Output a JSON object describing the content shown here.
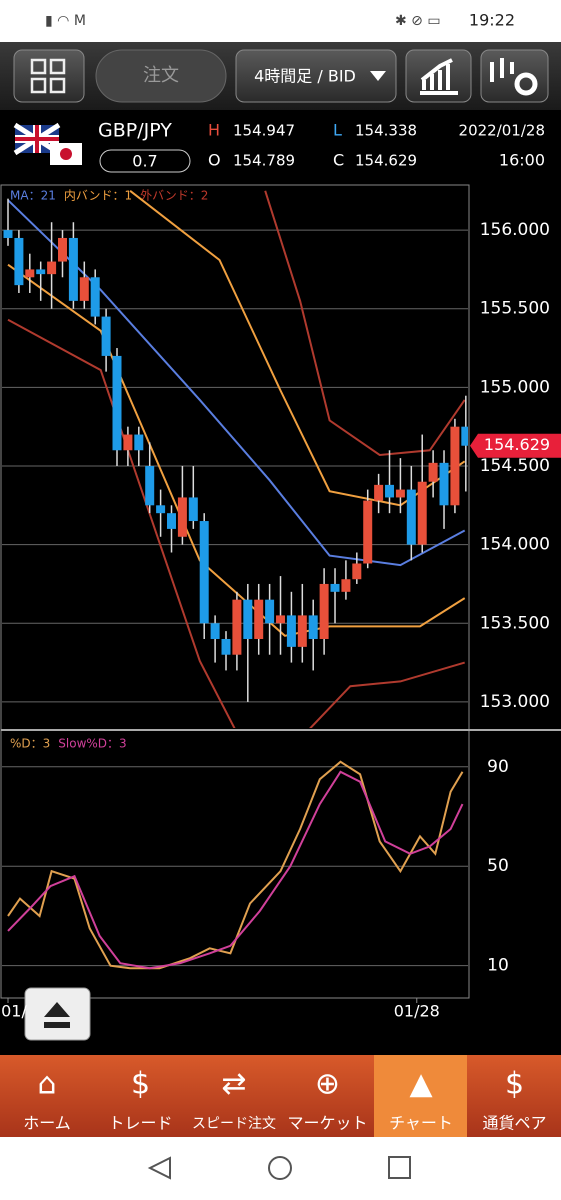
{
  "status_bar": {
    "time": "19:22"
  },
  "toolbar": {
    "order_button": "注文",
    "timeframe": "4時間足 / BID"
  },
  "quote": {
    "pair": "GBP/JPY",
    "spread": "0.7",
    "high_label": "H",
    "high": "154.947",
    "low_label": "L",
    "low": "154.338",
    "open_label": "O",
    "open": "154.789",
    "close_label": "C",
    "close": "154.629",
    "date": "2022/01/28",
    "time": "16:00"
  },
  "chart_data": [
    {
      "type": "candlestick",
      "legend": [
        "MA：21",
        "内バンド：1",
        "外バンド：2"
      ],
      "legend_colors": [
        "#5a7ee0",
        "#f0a040",
        "#c0392b"
      ],
      "up_color": "#e8503a",
      "down_color": "#1e9be8",
      "xlim": [
        -0.55,
        42.2
      ],
      "ylim": [
        152.834,
        156.255
      ],
      "yticks": [
        {
          "value": 156,
          "label": "156.000"
        },
        {
          "value": 155.5,
          "label": "155.500"
        },
        {
          "value": 155,
          "label": "155.000"
        },
        {
          "value": 154.5,
          "label": "154.500"
        },
        {
          "value": 154,
          "label": "154.000"
        },
        {
          "value": 153.5,
          "label": "153.500"
        },
        {
          "value": 153,
          "label": "153.000"
        }
      ],
      "grid": true,
      "current_price": {
        "value": 154.629,
        "label": "154.629"
      },
      "candles": {
        "open": [
          156.0,
          155.95,
          155.7,
          155.75,
          155.72,
          155.8,
          155.95,
          155.55,
          155.7,
          155.45,
          155.2,
          154.6,
          154.7,
          154.5,
          154.25,
          154.2,
          154.05,
          154.3,
          154.15,
          153.5,
          153.4,
          153.3,
          153.65,
          153.4,
          153.65,
          153.5,
          153.55,
          153.35,
          153.55,
          153.4,
          153.75,
          153.7,
          153.78,
          153.88,
          154.28,
          154.38,
          154.3,
          154.35,
          154.0,
          154.4,
          154.52,
          154.25,
          154.75
        ],
        "high": [
          156.2,
          156.0,
          155.85,
          155.8,
          156.05,
          156.0,
          156.05,
          155.8,
          155.75,
          155.5,
          155.25,
          154.75,
          154.75,
          154.65,
          154.35,
          154.25,
          154.5,
          154.5,
          154.2,
          153.55,
          153.45,
          153.7,
          153.75,
          153.75,
          153.75,
          153.8,
          153.7,
          153.75,
          153.65,
          153.85,
          153.85,
          153.9,
          153.95,
          154.35,
          154.45,
          154.6,
          154.55,
          154.5,
          154.7,
          154.6,
          154.6,
          154.8,
          154.947
        ],
        "low": [
          155.9,
          155.6,
          155.6,
          155.55,
          155.5,
          155.7,
          155.5,
          155.5,
          155.4,
          155.1,
          154.5,
          154.5,
          154.5,
          154.2,
          154.05,
          153.95,
          154.0,
          154.1,
          153.4,
          153.25,
          153.2,
          153.2,
          153.0,
          153.3,
          153.3,
          153.3,
          153.25,
          153.25,
          153.2,
          153.3,
          153.5,
          153.65,
          153.75,
          153.85,
          154.2,
          154.2,
          154.2,
          153.9,
          153.95,
          154.3,
          154.1,
          154.2,
          154.338
        ],
        "close": [
          155.95,
          155.65,
          155.75,
          155.72,
          155.8,
          155.95,
          155.55,
          155.7,
          155.45,
          155.2,
          154.6,
          154.7,
          154.6,
          154.25,
          154.2,
          154.1,
          154.3,
          154.15,
          153.5,
          153.4,
          153.3,
          153.65,
          153.4,
          153.65,
          153.5,
          153.55,
          153.35,
          153.55,
          153.4,
          153.75,
          153.7,
          153.78,
          153.88,
          154.28,
          154.38,
          154.3,
          154.35,
          154.0,
          154.4,
          154.52,
          154.25,
          154.75,
          154.629
        ]
      },
      "lines": [
        {
          "color": "#5a7ee0",
          "x": [
            0,
            8.5,
            17.6,
            24,
            29.5,
            36,
            41.9
          ],
          "values": [
            156.19,
            155.62,
            154.92,
            154.41,
            153.93,
            153.87,
            154.09
          ]
        },
        {
          "color": "#f0a040",
          "x": [
            11.2,
            19.4,
            25,
            29.5,
            36,
            41.9
          ],
          "values": [
            156.25,
            155.81,
            154.98,
            154.34,
            154.25,
            154.53
          ]
        },
        {
          "color": "#f0a040",
          "x": [
            0,
            8.5,
            17.6,
            25.4,
            29.5,
            37.8,
            41.9
          ],
          "values": [
            155.78,
            155.36,
            153.9,
            153.42,
            153.48,
            153.48,
            153.66
          ]
        },
        {
          "color": "#b03a2e",
          "x": [
            23.6,
            26.8,
            29.5,
            34.1,
            38.7,
            41.9
          ],
          "values": [
            156.25,
            155.55,
            154.79,
            154.57,
            154.6,
            154.92
          ]
        },
        {
          "color": "#b03a2e",
          "x": [
            0,
            8.5,
            17.6,
            20.8,
            24,
            27.7,
            31.4,
            36,
            41.9
          ],
          "values": [
            155.43,
            155.11,
            153.26,
            152.83,
            null,
            152.83,
            153.1,
            153.13,
            153.25
          ]
        }
      ]
    },
    {
      "type": "line",
      "legend": [
        "%D：3",
        "Slow%D：3"
      ],
      "xlim": [
        -0.55,
        42.2
      ],
      "ylim": [
        -3,
        104
      ],
      "yticks": [
        90,
        50,
        10
      ],
      "grid": true,
      "xticks": [
        {
          "value": 0,
          "label": "01/"
        },
        {
          "value": 37.5,
          "label": "01/28"
        }
      ],
      "series": [
        {
          "name": "%D",
          "color": "#e0a050",
          "x": [
            0,
            1.1,
            2.9,
            4,
            6.1,
            7.5,
            9.4,
            11.2,
            13.9,
            16.7,
            18.5,
            20.4,
            22.2,
            25,
            26.8,
            28.6,
            30.5,
            32.3,
            34.1,
            36,
            37.8,
            39.2,
            40.6,
            41.7
          ],
          "values": [
            30,
            37,
            30,
            48,
            45,
            25,
            10,
            9,
            9,
            13,
            17,
            15,
            35,
            48,
            65,
            85,
            92,
            87,
            60,
            48,
            62,
            55,
            80,
            88
          ]
        },
        {
          "name": "Slow%D",
          "color": "#d0409a",
          "x": [
            0,
            2,
            3.9,
            6.1,
            8.4,
            10.3,
            13,
            15.8,
            18.5,
            20.4,
            23.1,
            25.9,
            28.6,
            30.5,
            32.3,
            34.6,
            36.9,
            38.7,
            40.6,
            41.7
          ],
          "values": [
            24,
            33,
            42,
            46,
            22,
            11,
            9,
            11,
            15,
            18,
            32,
            50,
            75,
            88,
            84,
            60,
            55,
            58,
            65,
            75
          ]
        }
      ]
    }
  ],
  "nav": [
    "ホーム",
    "トレード",
    "スピード注文",
    "マーケット",
    "チャート",
    "通貨ペア"
  ]
}
